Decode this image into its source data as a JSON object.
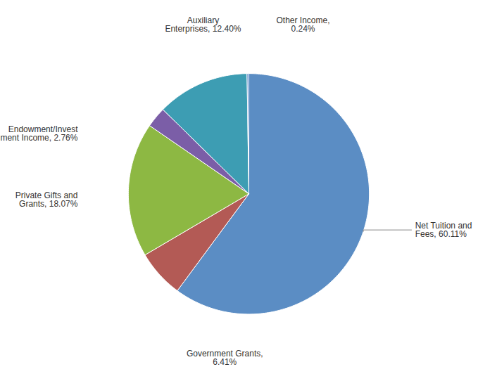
{
  "chart_data": {
    "type": "pie",
    "categories": [
      "Net Tuition and\nFees, 60.11%",
      "Government Grants,\n6.41%",
      "Private Gifts and\nGrants, 18.07%",
      "Endowment/Invest\nment Income, 2.76%",
      "Auxiliary\nEnterprises, 12.40%",
      "Other Income,\n0.24%"
    ],
    "values": [
      60.11,
      6.41,
      18.07,
      2.76,
      12.4,
      0.24
    ],
    "colors": [
      "#5B8DC4",
      "#B35A55",
      "#8DB843",
      "#7B5EA7",
      "#3D9DB3",
      "#4A7EC4"
    ]
  }
}
